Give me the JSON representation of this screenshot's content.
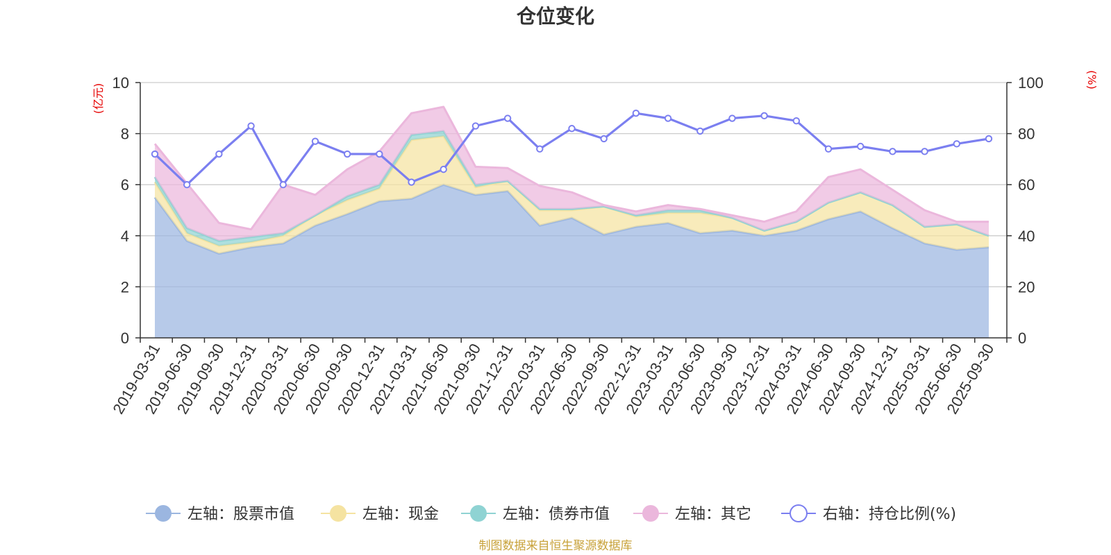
{
  "chart_data": {
    "type": "area",
    "title": "仓位变化",
    "left_axis": {
      "unit": "(亿元)",
      "range": [
        0,
        10
      ],
      "ticks": [
        "0",
        "2",
        "4",
        "6",
        "8",
        "10"
      ]
    },
    "right_axis": {
      "unit": "(%)",
      "range": [
        0,
        100
      ],
      "ticks": [
        "0",
        "20",
        "40",
        "60",
        "80",
        "100"
      ]
    },
    "categories": [
      "2019-03-31",
      "2019-06-30",
      "2019-09-30",
      "2019-12-31",
      "2020-03-31",
      "2020-06-30",
      "2020-09-30",
      "2020-12-31",
      "2021-03-31",
      "2021-06-30",
      "2021-09-30",
      "2021-12-31",
      "2022-03-31",
      "2022-06-30",
      "2022-09-30",
      "2022-12-31",
      "2023-03-31",
      "2023-06-30",
      "2023-09-30",
      "2023-12-31",
      "2024-03-31",
      "2024-06-30",
      "2024-09-30",
      "2024-12-31",
      "2025-03-31",
      "2025-06-30",
      "2025-09-30"
    ],
    "grid": true,
    "legend_position": "bottom",
    "series": [
      {
        "name": "左轴：股票市值",
        "axis": "left",
        "kind": "stacked-area",
        "color": "#9bb6e0",
        "values": [
          5.5,
          3.8,
          3.3,
          3.55,
          3.7,
          4.4,
          4.85,
          5.35,
          5.45,
          6.0,
          5.6,
          5.75,
          4.4,
          4.7,
          4.05,
          4.35,
          4.5,
          4.1,
          4.2,
          4.0,
          4.2,
          4.65,
          4.95,
          4.3,
          3.7,
          3.45,
          3.55
        ]
      },
      {
        "name": "左轴：现金",
        "axis": "left",
        "kind": "stacked-area",
        "color": "#f5e3a1",
        "values": [
          0.6,
          0.3,
          0.3,
          0.2,
          0.3,
          0.4,
          0.55,
          0.5,
          2.3,
          1.9,
          0.3,
          0.4,
          0.6,
          0.3,
          1.1,
          0.4,
          0.4,
          0.8,
          0.5,
          0.2,
          0.35,
          0.65,
          0.75,
          0.9,
          0.65,
          1.0,
          0.45
        ]
      },
      {
        "name": "左轴：债券市值",
        "axis": "left",
        "kind": "stacked-area",
        "color": "#8fd3d3",
        "values": [
          0.2,
          0.2,
          0.2,
          0.2,
          0.1,
          0.0,
          0.15,
          0.15,
          0.2,
          0.2,
          0.1,
          0.0,
          0.05,
          0.05,
          0.0,
          0.05,
          0.1,
          0.1,
          0.0,
          0.0,
          0.0,
          0.0,
          0.0,
          0.0,
          0.0,
          0.0,
          0.0
        ]
      },
      {
        "name": "左轴：其它",
        "axis": "left",
        "kind": "stacked-area",
        "color": "#ebb7dc",
        "values": [
          1.3,
          1.75,
          0.7,
          0.3,
          1.9,
          0.8,
          1.05,
          1.3,
          0.85,
          0.95,
          0.7,
          0.5,
          0.9,
          0.65,
          0.05,
          0.15,
          0.2,
          0.05,
          0.1,
          0.35,
          0.4,
          1.0,
          0.9,
          0.6,
          0.65,
          0.1,
          0.55
        ]
      },
      {
        "name": "右轴：持仓比例(%)",
        "axis": "right",
        "kind": "line",
        "color": "#7b7ff0",
        "values": [
          72,
          60,
          72,
          83,
          60,
          77,
          72,
          72,
          61,
          66,
          83,
          86,
          74,
          82,
          78,
          88,
          86,
          81,
          86,
          87,
          85,
          74,
          75,
          73,
          73,
          76,
          78
        ]
      }
    ],
    "source_note": "制图数据来自恒生聚源数据库"
  },
  "colors": {
    "axis_unit": "#e60000",
    "grid": "#cccccc",
    "axis": "#333333",
    "source": "#c8a23a"
  }
}
